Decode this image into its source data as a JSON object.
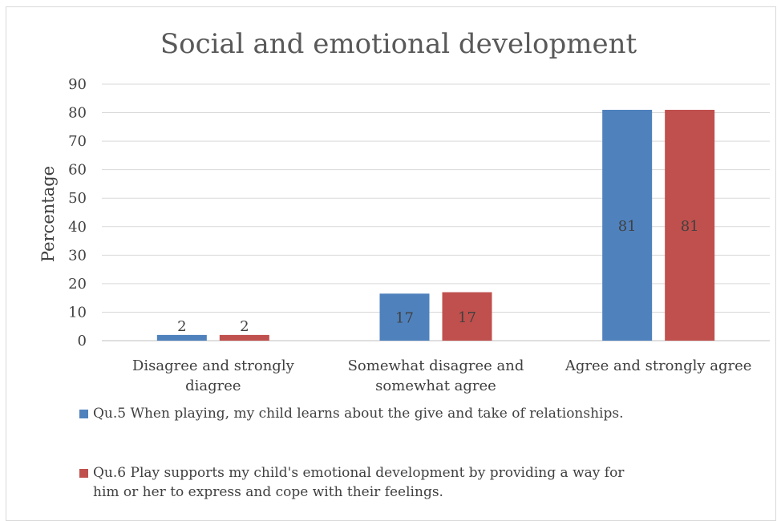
{
  "chart_data": {
    "type": "bar",
    "title": "Social and emotional development",
    "ylabel": "Percentage",
    "ylim": [
      0,
      90
    ],
    "yticks": [
      0,
      10,
      20,
      30,
      40,
      50,
      60,
      70,
      80,
      90
    ],
    "grid": true,
    "legend_position": "bottom",
    "categories": [
      [
        "Disagree and strongly",
        "diagree"
      ],
      [
        "Somewhat disagree and",
        "somewhat agree"
      ],
      [
        "Agree and strongly agree"
      ]
    ],
    "series": [
      {
        "name": "Qu.5 When playing, my child learns about the give and take of relationships.",
        "color": "#4F81BD",
        "values": [
          2,
          16.5,
          81
        ],
        "labels": [
          "2",
          "17",
          "81"
        ]
      },
      {
        "name_lines": [
          "Qu.6 Play supports my child's emotional development by providing a way for",
          "him or her to express and cope with their feelings."
        ],
        "color": "#C0504D",
        "values": [
          2,
          17,
          81
        ],
        "labels": [
          "2",
          "17",
          "81"
        ]
      }
    ]
  }
}
